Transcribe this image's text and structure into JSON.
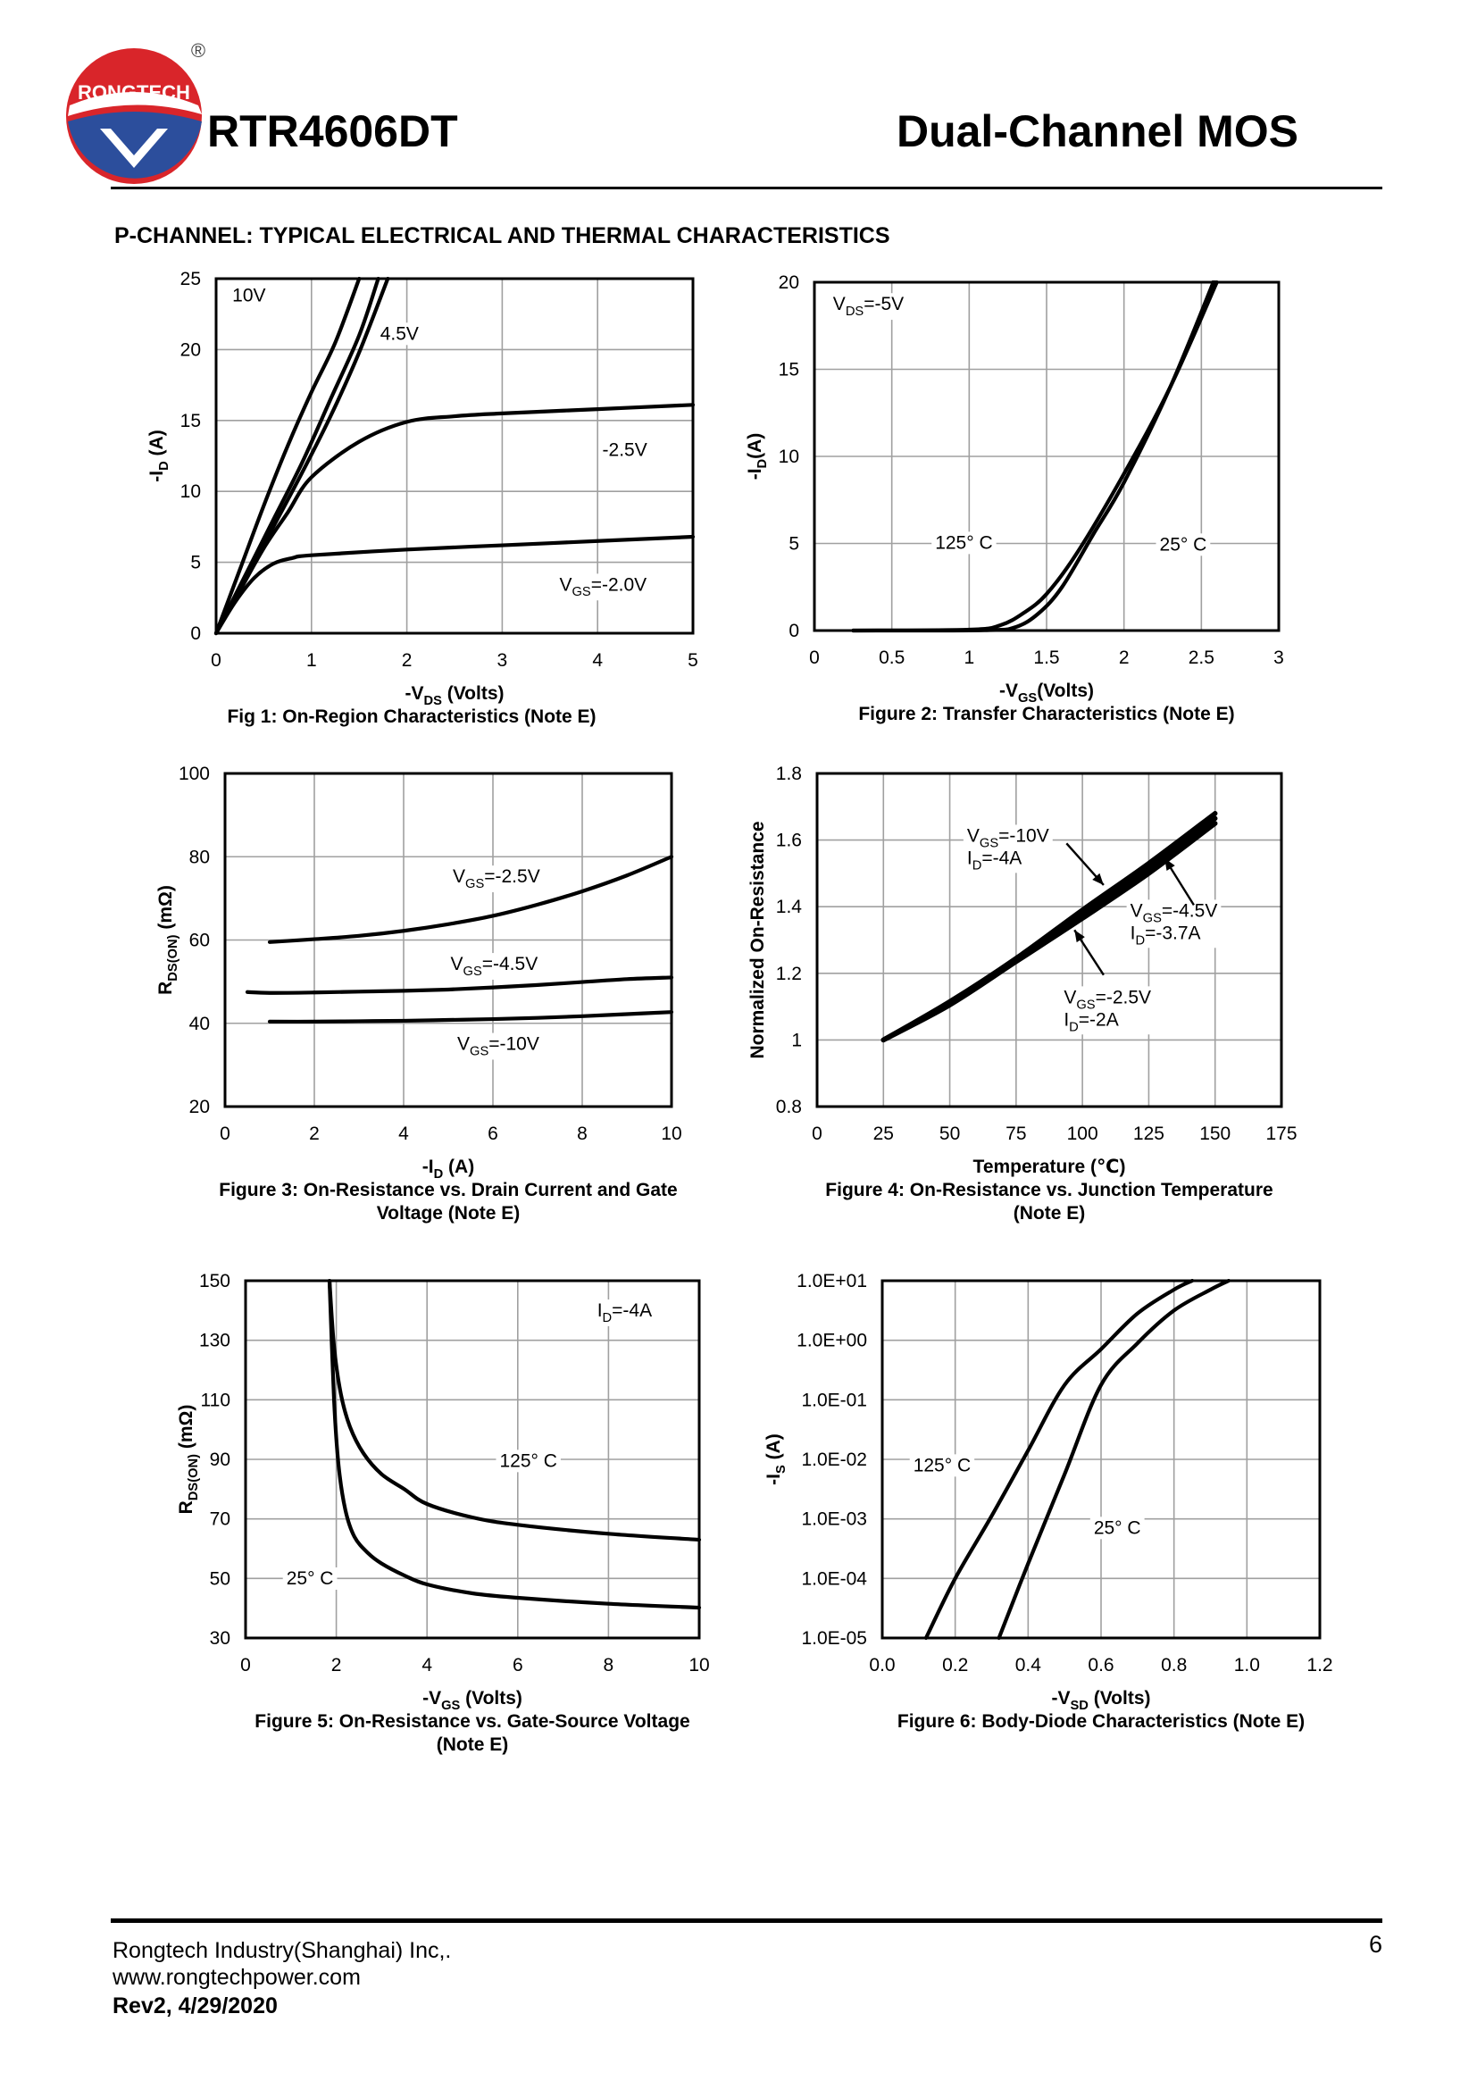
{
  "header": {
    "logo_text": "RONGTECH",
    "registered_mark": "®",
    "part_number": "RTR4606DT",
    "doc_type": "Dual-Channel MOS"
  },
  "section_title": "P-CHANNEL: TYPICAL ELECTRICAL AND THERMAL CHARACTERISTICS",
  "colors": {
    "ink": "#000000",
    "grid": "#a0a0a0",
    "logo_red": "#d9252a",
    "logo_blue": "#2c4e9c"
  },
  "chart_data": [
    {
      "id": "fig1",
      "type": "line",
      "caption": "Fig 1: On-Region Characteristics (Note E)",
      "ylabel": {
        "pre": "-I",
        "sub": "D",
        "post": " (A)"
      },
      "xlabel": {
        "pre": "-V",
        "sub": "DS",
        "post": " (Volts)"
      },
      "xlim": [
        0,
        5
      ],
      "ylim": [
        0,
        25
      ],
      "xticks": [
        0,
        1,
        2,
        3,
        4,
        5
      ],
      "yticks": [
        0,
        5,
        10,
        15,
        20,
        25
      ],
      "xtick_labels": [
        "0",
        "1",
        "2",
        "3",
        "4",
        "5"
      ],
      "ytick_labels": [
        "0",
        "5",
        "10",
        "15",
        "20",
        "25"
      ],
      "series": [
        {
          "name": "10V",
          "x": [
            0,
            0.25,
            0.5,
            0.75,
            1.0,
            1.25,
            1.5
          ],
          "y": [
            0,
            4.5,
            9.0,
            13.2,
            17.0,
            20.5,
            25.0
          ]
        },
        {
          "name": "4.5V-a",
          "x": [
            0,
            0.3,
            0.6,
            0.9,
            1.2,
            1.5,
            1.7
          ],
          "y": [
            0,
            4.0,
            8.0,
            12.0,
            16.5,
            21.0,
            25.0
          ]
        },
        {
          "name": "4.5V-b",
          "x": [
            0,
            0.3,
            0.6,
            0.9,
            1.2,
            1.5,
            1.8
          ],
          "y": [
            0,
            3.8,
            7.5,
            11.3,
            15.3,
            19.8,
            25.0
          ]
        },
        {
          "name": "-2.5V",
          "x": [
            0,
            0.25,
            0.5,
            0.75,
            1.0,
            1.5,
            2.0,
            2.5,
            3.0,
            4.0,
            5.0
          ],
          "y": [
            0,
            3.0,
            6.0,
            8.5,
            11.0,
            13.5,
            14.9,
            15.3,
            15.5,
            15.8,
            16.1
          ]
        },
        {
          "name": "-2.0V",
          "x": [
            0,
            0.2,
            0.4,
            0.6,
            0.8,
            1.0,
            2.0,
            3.0,
            4.0,
            5.0
          ],
          "y": [
            0,
            2.2,
            3.9,
            4.9,
            5.3,
            5.5,
            5.9,
            6.2,
            6.5,
            6.8
          ]
        }
      ],
      "annotations": [
        {
          "text": "10V",
          "x": 0.17,
          "y": 23.4
        },
        {
          "text": "4.5V",
          "x": 1.72,
          "y": 20.7
        },
        {
          "text": "-2.5V",
          "x": 4.05,
          "y": 12.5
        },
        {
          "pre": "V",
          "sub": "GS",
          "post": "=-2.0V",
          "x": 3.6,
          "y": 3.0
        }
      ]
    },
    {
      "id": "fig2",
      "type": "line",
      "caption": "Figure 2: Transfer Characteristics (Note E)",
      "ylabel": {
        "pre": "-I",
        "sub": "D",
        "post": "(A)"
      },
      "xlabel": {
        "pre": "-V",
        "sub": "GS",
        "post": "(Volts)"
      },
      "xlim": [
        0,
        3
      ],
      "ylim": [
        0,
        20
      ],
      "xticks": [
        0,
        0.5,
        1,
        1.5,
        2,
        2.5,
        3
      ],
      "yticks": [
        0,
        5,
        10,
        15,
        20
      ],
      "xtick_labels": [
        "0",
        "0.5",
        "1",
        "1.5",
        "2",
        "2.5",
        "3"
      ],
      "ytick_labels": [
        "0",
        "5",
        "10",
        "15",
        "20"
      ],
      "series": [
        {
          "name": "125° C",
          "x": [
            0.25,
            1.0,
            1.2,
            1.35,
            1.5,
            1.7,
            2.0,
            2.3,
            2.6
          ],
          "y": [
            0,
            0.05,
            0.3,
            1.0,
            2.1,
            4.5,
            9.0,
            14.0,
            20.0
          ]
        },
        {
          "name": "25° C",
          "x": [
            0.25,
            1.1,
            1.3,
            1.45,
            1.6,
            1.8,
            2.0,
            2.3,
            2.6
          ],
          "y": [
            0,
            0.02,
            0.2,
            1.0,
            2.5,
            5.5,
            8.5,
            14.0,
            20.5
          ]
        }
      ],
      "annotations": [
        {
          "pre": "V",
          "sub": "DS",
          "post": "=-5V",
          "x": 0.12,
          "y": 18.4
        },
        {
          "text": "125° C",
          "x": 0.78,
          "y": 4.7
        },
        {
          "text": "25° C",
          "x": 2.23,
          "y": 4.6
        }
      ]
    },
    {
      "id": "fig3",
      "type": "line",
      "caption": "Figure 3: On-Resistance vs. Drain Current and Gate\nVoltage (Note E)",
      "ylabel": {
        "pre": "R",
        "sub": "DS(ON)",
        "post": " (mΩ)"
      },
      "xlabel": {
        "pre": "-I",
        "sub": "D",
        "post": " (A)"
      },
      "xlim": [
        0,
        10
      ],
      "ylim": [
        20,
        100
      ],
      "xticks": [
        0,
        2,
        4,
        6,
        8,
        10
      ],
      "yticks": [
        20,
        40,
        60,
        80,
        100
      ],
      "xtick_labels": [
        "0",
        "2",
        "4",
        "6",
        "8",
        "10"
      ],
      "ytick_labels": [
        "20",
        "40",
        "60",
        "80",
        "100"
      ],
      "series": [
        {
          "name": "VGS=-2.5V",
          "x": [
            1,
            2,
            3,
            4,
            5,
            6,
            7,
            8,
            9,
            10
          ],
          "y": [
            59.5,
            60.2,
            61.0,
            62.2,
            63.8,
            65.8,
            68.5,
            71.7,
            75.5,
            80.0
          ]
        },
        {
          "name": "VGS=-4.5V",
          "x": [
            0.5,
            1,
            2,
            3,
            4,
            5,
            6,
            7,
            8,
            9,
            10
          ],
          "y": [
            47.5,
            47.3,
            47.4,
            47.6,
            47.8,
            48.1,
            48.6,
            49.2,
            49.9,
            50.6,
            51.0
          ]
        },
        {
          "name": "VGS=-10V",
          "x": [
            1,
            2,
            3,
            4,
            5,
            6,
            7,
            8,
            9,
            10
          ],
          "y": [
            40.4,
            40.4,
            40.5,
            40.6,
            40.8,
            41.0,
            41.3,
            41.7,
            42.2,
            42.7
          ]
        }
      ],
      "annotations": [
        {
          "pre": "V",
          "sub": "GS",
          "post": "=-2.5V",
          "x": 5.1,
          "y": 73.8
        },
        {
          "pre": "V",
          "sub": "GS",
          "post": "=-4.5V",
          "x": 5.05,
          "y": 52.8
        },
        {
          "pre": "V",
          "sub": "GS",
          "post": "=-10V",
          "x": 5.2,
          "y": 33.6
        }
      ]
    },
    {
      "id": "fig4",
      "type": "line",
      "caption": "Figure 4: On-Resistance vs. Junction Temperature\n(Note E)",
      "ylabel": {
        "pre": "Normalized On-Resistance",
        "sub": "",
        "post": ""
      },
      "xlabel": {
        "pre": "Temperature (℃)",
        "sub": "",
        "post": ""
      },
      "xlim": [
        0,
        175
      ],
      "ylim": [
        0.8,
        1.8
      ],
      "xticks": [
        0,
        25,
        50,
        75,
        100,
        125,
        150,
        175
      ],
      "yticks": [
        0.8,
        1.0,
        1.2,
        1.4,
        1.6,
        1.8
      ],
      "xtick_labels": [
        "0",
        "25",
        "50",
        "75",
        "100",
        "125",
        "150",
        "175"
      ],
      "ytick_labels": [
        "0.8",
        "1",
        "1.2",
        "1.4",
        "1.6",
        "1.8"
      ],
      "series": [
        {
          "name": "VGS=-10V ID=-4A",
          "x": [
            25,
            50,
            75,
            100,
            125,
            150
          ],
          "y": [
            1.0,
            1.115,
            1.245,
            1.39,
            1.53,
            1.68
          ]
        },
        {
          "name": "VGS=-4.5V ID=-3.7A",
          "x": [
            25,
            50,
            75,
            100,
            125,
            150
          ],
          "y": [
            1.0,
            1.11,
            1.24,
            1.375,
            1.515,
            1.665
          ]
        },
        {
          "name": "VGS=-2.5V ID=-2A",
          "x": [
            25,
            50,
            75,
            100,
            125,
            150
          ],
          "y": [
            1.0,
            1.105,
            1.235,
            1.365,
            1.5,
            1.65
          ]
        }
      ],
      "annotations": [
        {
          "pre": "V",
          "sub": "GS",
          "post": "=-10V",
          "x": 56.5,
          "y": 1.595,
          "line2": {
            "pre": "I",
            "sub": "D",
            "post": "=-4A"
          }
        },
        {
          "pre": "V",
          "sub": "GS",
          "post": "=-4.5V",
          "x": 118,
          "y": 1.37,
          "line2": {
            "pre": "I",
            "sub": "D",
            "post": "=-3.7A"
          }
        },
        {
          "pre": "V",
          "sub": "GS",
          "post": "=-2.5V",
          "x": 93,
          "y": 1.11,
          "line2": {
            "pre": "I",
            "sub": "D",
            "post": "=-2A"
          }
        }
      ],
      "arrows": [
        {
          "from": [
            94,
            1.59
          ],
          "to": [
            108,
            1.465
          ]
        },
        {
          "from": [
            142,
            1.405
          ],
          "to": [
            131,
            1.545
          ]
        },
        {
          "from": [
            108,
            1.195
          ],
          "to": [
            97,
            1.33
          ]
        }
      ]
    },
    {
      "id": "fig5",
      "type": "line",
      "caption": "Figure 5: On-Resistance vs. Gate-Source Voltage\n(Note E)",
      "ylabel": {
        "pre": "R",
        "sub": "DS(ON)",
        "post": " (mΩ)"
      },
      "xlabel": {
        "pre": "-V",
        "sub": "GS",
        "post": " (Volts)"
      },
      "xlim": [
        0,
        10
      ],
      "ylim": [
        30,
        150
      ],
      "xticks": [
        0,
        2,
        4,
        6,
        8,
        10
      ],
      "yticks": [
        30,
        50,
        70,
        90,
        110,
        130,
        150
      ],
      "xtick_labels": [
        "0",
        "2",
        "4",
        "6",
        "8",
        "10"
      ],
      "ytick_labels": [
        "30",
        "50",
        "70",
        "90",
        "110",
        "130",
        "150"
      ],
      "series": [
        {
          "name": "125° C",
          "x": [
            1.85,
            1.95,
            2.1,
            2.3,
            2.6,
            3.0,
            3.5,
            4.0,
            5.0,
            6.0,
            8.0,
            10.0
          ],
          "y": [
            150,
            128,
            112,
            101,
            92,
            85,
            80,
            75,
            70.5,
            68,
            65,
            63
          ]
        },
        {
          "name": "25° C",
          "x": [
            1.85,
            1.95,
            2.05,
            2.2,
            2.4,
            2.7,
            3.0,
            3.5,
            4.0,
            5.0,
            6.0,
            8.0,
            10.0
          ],
          "y": [
            150,
            110,
            88,
            73,
            64,
            58.5,
            55,
            51,
            48,
            45,
            43.5,
            41.5,
            40.2
          ]
        }
      ],
      "annotations": [
        {
          "pre": "I",
          "sub": "D",
          "post": "=-4A",
          "x": 7.75,
          "y": 138
        },
        {
          "text": "125° C",
          "x": 5.6,
          "y": 87.5
        },
        {
          "text": "25° C",
          "x": 0.9,
          "y": 48
        }
      ]
    },
    {
      "id": "fig6",
      "type": "line",
      "yscale": "log",
      "caption": "Figure 6: Body-Diode Characteristics (Note E)",
      "ylabel": {
        "pre": "-I",
        "sub": "S",
        "post": " (A)"
      },
      "xlabel": {
        "pre": "-V",
        "sub": "SD",
        "post": " (Volts)"
      },
      "xlim": [
        0,
        1.2
      ],
      "ylim_log10": [
        -5,
        1
      ],
      "xticks": [
        0,
        0.2,
        0.4,
        0.6,
        0.8,
        1.0,
        1.2
      ],
      "yticks_log10": [
        -5,
        -4,
        -3,
        -2,
        -1,
        0,
        1
      ],
      "xtick_labels": [
        "0.0",
        "0.2",
        "0.4",
        "0.6",
        "0.8",
        "1.0",
        "1.2"
      ],
      "ytick_labels": [
        "1.0E-05",
        "1.0E-04",
        "1.0E-03",
        "1.0E-02",
        "1.0E-01",
        "1.0E+00",
        "1.0E+01"
      ],
      "series": [
        {
          "name": "125° C",
          "x": [
            0.12,
            0.2,
            0.3,
            0.4,
            0.5,
            0.6,
            0.7,
            0.8,
            0.85
          ],
          "y_log10": [
            -5.0,
            -4.0,
            -2.95,
            -1.85,
            -0.75,
            -0.15,
            0.45,
            0.85,
            1.0
          ]
        },
        {
          "name": "25° C",
          "x": [
            0.32,
            0.4,
            0.5,
            0.6,
            0.7,
            0.8,
            0.9,
            0.95
          ],
          "y_log10": [
            -5.0,
            -3.75,
            -2.25,
            -0.75,
            -0.05,
            0.5,
            0.85,
            1.0
          ]
        }
      ],
      "annotations": [
        {
          "text": "125° C",
          "x": 0.085,
          "y_log10": -2.2
        },
        {
          "text": "25° C",
          "x": 0.58,
          "y_log10": -3.25
        }
      ]
    }
  ],
  "footer": {
    "company": "Rongtech Industry(Shanghai) Inc,.",
    "url": "www.rongtechpower.com",
    "rev": "Rev2, 4/29/2020",
    "page_number": "6"
  }
}
